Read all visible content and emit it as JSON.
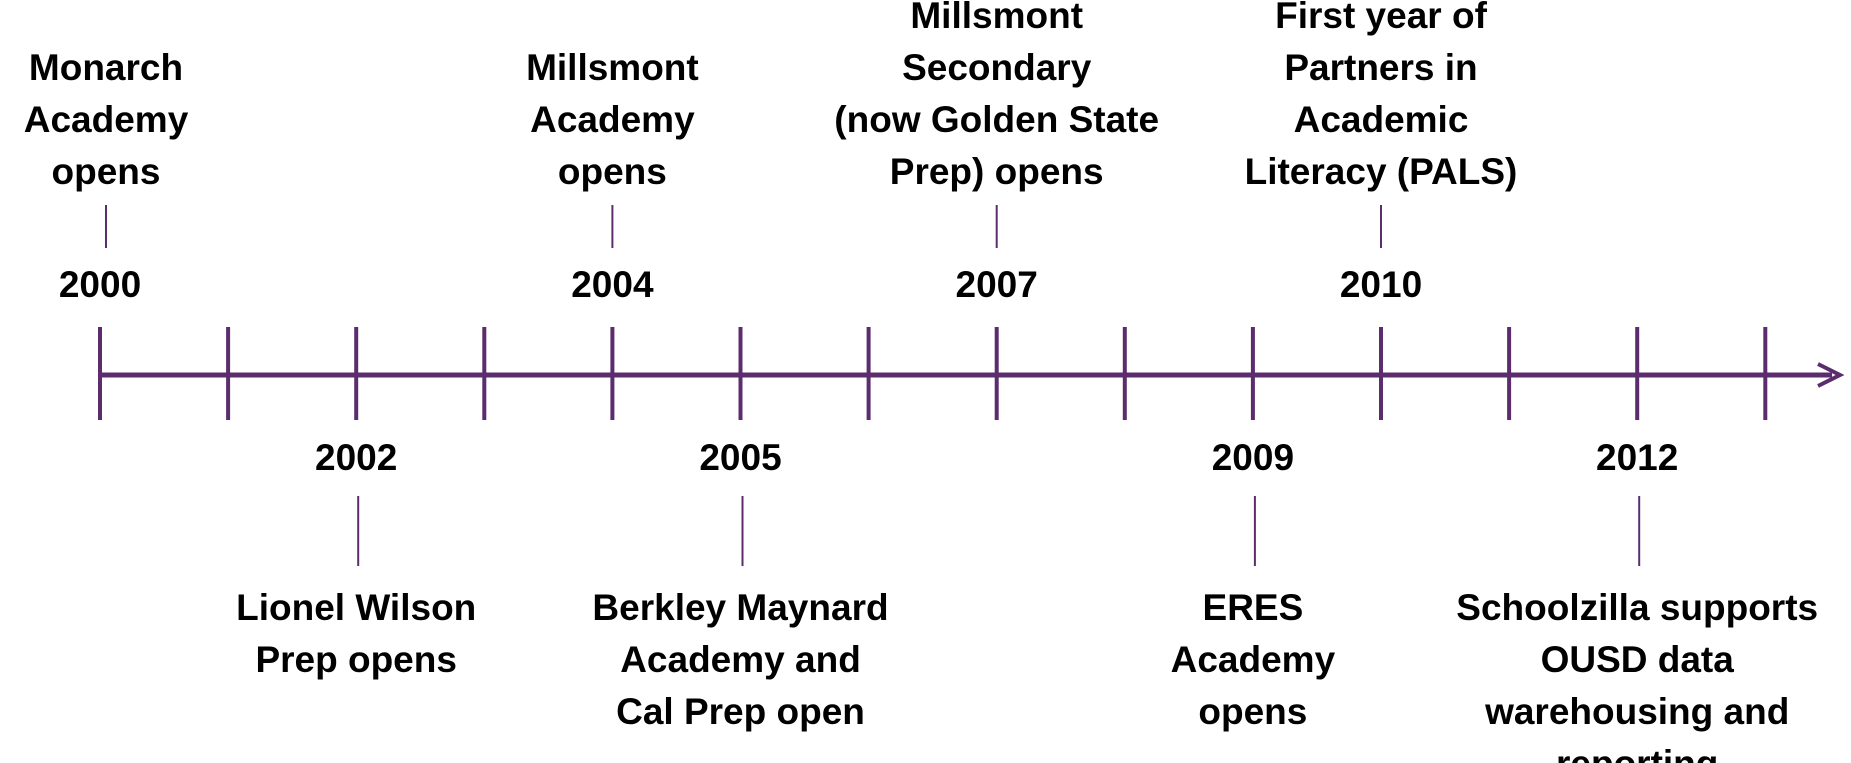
{
  "timeline": {
    "events": [
      {
        "year": 2000,
        "side": "above",
        "lines": [
          "Monarch",
          "Academy",
          "opens"
        ]
      },
      {
        "year": 2002,
        "side": "below",
        "lines": [
          "Lionel Wilson",
          "Prep opens"
        ]
      },
      {
        "year": 2004,
        "side": "above",
        "lines": [
          "Millsmont",
          "Academy",
          "opens"
        ]
      },
      {
        "year": 2005,
        "side": "below",
        "lines": [
          "Berkley Maynard",
          "Academy and",
          "Cal Prep open"
        ]
      },
      {
        "year": 2007,
        "side": "above",
        "lines": [
          "Millsmont",
          "Secondary",
          "(now Golden State",
          "Prep) opens"
        ]
      },
      {
        "year": 2009,
        "side": "below",
        "lines": [
          "ERES",
          "Academy",
          "opens"
        ]
      },
      {
        "year": 2010,
        "side": "above",
        "lines": [
          "First year of",
          "Partners in",
          "Academic",
          "Literacy (PALS)"
        ]
      },
      {
        "year": 2012,
        "side": "below",
        "lines": [
          "Schoolzilla supports",
          "OUSD data",
          "warehousing and",
          "reporting"
        ]
      }
    ],
    "color": "#5c2d6e"
  }
}
